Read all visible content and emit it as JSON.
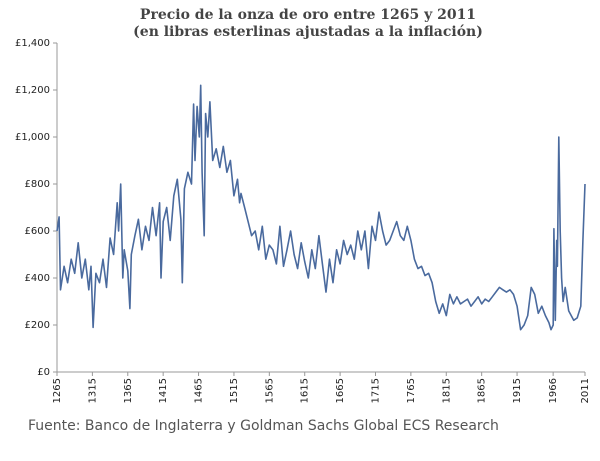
{
  "chart_data": {
    "type": "line",
    "title": "Precio de la onza de oro entre 1265 y 2011",
    "subtitle": "(en libras esterlinas ajustadas a la inflación)",
    "source": "Fuente: Banco de Inglaterra y Goldman Sachs Global ECS Research",
    "x": [
      1265,
      1268,
      1270,
      1275,
      1280,
      1285,
      1290,
      1295,
      1300,
      1305,
      1310,
      1313,
      1316,
      1320,
      1325,
      1330,
      1335,
      1340,
      1345,
      1350,
      1352,
      1355,
      1358,
      1360,
      1365,
      1368,
      1370,
      1375,
      1380,
      1385,
      1390,
      1395,
      1400,
      1405,
      1410,
      1412,
      1415,
      1420,
      1425,
      1430,
      1435,
      1440,
      1442,
      1445,
      1450,
      1455,
      1458,
      1460,
      1463,
      1466,
      1468,
      1470,
      1473,
      1475,
      1478,
      1481,
      1485,
      1490,
      1495,
      1500,
      1505,
      1510,
      1515,
      1520,
      1523,
      1525,
      1530,
      1535,
      1540,
      1545,
      1550,
      1555,
      1560,
      1565,
      1570,
      1575,
      1580,
      1585,
      1590,
      1595,
      1600,
      1605,
      1610,
      1615,
      1620,
      1625,
      1630,
      1635,
      1640,
      1645,
      1650,
      1655,
      1660,
      1665,
      1670,
      1675,
      1680,
      1685,
      1690,
      1695,
      1700,
      1705,
      1710,
      1715,
      1720,
      1725,
      1730,
      1735,
      1740,
      1745,
      1750,
      1755,
      1760,
      1765,
      1770,
      1775,
      1780,
      1785,
      1790,
      1795,
      1800,
      1805,
      1810,
      1815,
      1820,
      1825,
      1830,
      1835,
      1840,
      1845,
      1850,
      1855,
      1860,
      1865,
      1870,
      1875,
      1880,
      1885,
      1890,
      1895,
      1900,
      1905,
      1910,
      1915,
      1920,
      1925,
      1930,
      1935,
      1940,
      1945,
      1950,
      1955,
      1960,
      1963,
      1966,
      1967,
      1969,
      1971,
      1972,
      1974,
      1976,
      1978,
      1980,
      1983,
      1988,
      1995,
      2000,
      2005,
      2008,
      2011
    ],
    "series": [
      {
        "name": "Precio",
        "color": "#4a6a9e",
        "values": [
          600,
          660,
          350,
          450,
          380,
          480,
          420,
          550,
          400,
          480,
          350,
          450,
          190,
          420,
          380,
          480,
          360,
          570,
          500,
          720,
          600,
          800,
          400,
          520,
          430,
          270,
          500,
          580,
          650,
          520,
          620,
          560,
          700,
          580,
          720,
          400,
          640,
          700,
          560,
          750,
          820,
          650,
          380,
          780,
          850,
          800,
          1140,
          900,
          1130,
          1000,
          1220,
          850,
          580,
          1100,
          1000,
          1150,
          900,
          950,
          870,
          960,
          850,
          900,
          750,
          820,
          720,
          760,
          700,
          640,
          580,
          600,
          520,
          620,
          480,
          540,
          520,
          460,
          620,
          450,
          520,
          600,
          500,
          440,
          550,
          470,
          400,
          520,
          440,
          580,
          460,
          340,
          480,
          380,
          520,
          460,
          560,
          500,
          540,
          480,
          600,
          520,
          600,
          440,
          620,
          560,
          680,
          600,
          540,
          560,
          600,
          640,
          580,
          560,
          620,
          560,
          480,
          440,
          450,
          410,
          420,
          380,
          300,
          250,
          290,
          240,
          330,
          290,
          320,
          290,
          300,
          310,
          280,
          300,
          320,
          290,
          310,
          300,
          320,
          340,
          360,
          350,
          340,
          350,
          330,
          280,
          180,
          200,
          240,
          360,
          330,
          250,
          280,
          240,
          210,
          180,
          200,
          610,
          220,
          560,
          450,
          1000,
          600,
          400,
          300,
          360,
          260,
          220,
          230,
          280,
          560,
          800
        ]
      }
    ],
    "xlim": [
      1265,
      2011
    ],
    "xticks": [
      1265,
      1315,
      1365,
      1415,
      1465,
      1515,
      1565,
      1615,
      1665,
      1715,
      1765,
      1815,
      1865,
      1915,
      1966,
      2011
    ],
    "ylim": [
      0,
      1400
    ],
    "yticks": [
      {
        "value": 0,
        "label": "£0"
      },
      {
        "value": 200,
        "label": "£200"
      },
      {
        "value": 400,
        "label": "£400"
      },
      {
        "value": 600,
        "label": "£600"
      },
      {
        "value": 800,
        "label": "£800"
      },
      {
        "value": 1000,
        "label": "£1,000"
      },
      {
        "value": 1200,
        "label": "£1,200"
      },
      {
        "value": 1400,
        "label": "£1,400"
      }
    ],
    "grid": false
  }
}
